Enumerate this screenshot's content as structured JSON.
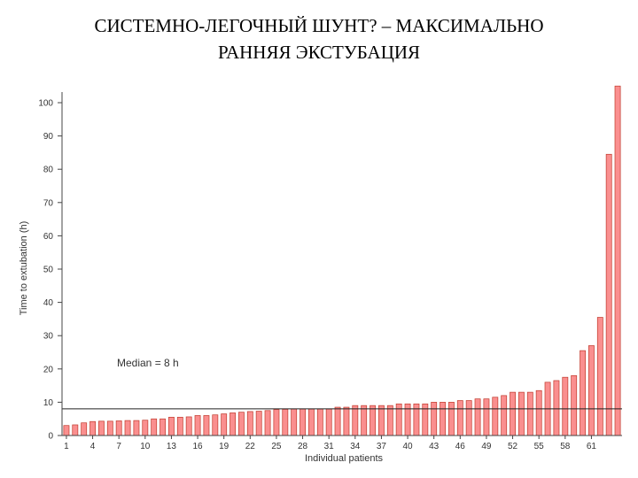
{
  "title": {
    "line1": "СИСТЕМНО-ЛЕГОЧНЫЙ ШУНТ? – МАКСИМАЛЬНО",
    "line2": "РАННЯЯ ЭКСТУБАЦИЯ"
  },
  "colors": {
    "bar_fill": "#fa8f8f",
    "bar_stroke": "#c0392b",
    "axis": "#444444",
    "median_line": "#222222"
  },
  "chart_data": {
    "type": "bar",
    "xlabel": "Individual patients",
    "ylabel": "Time to extubation (h)",
    "ylim": [
      0,
      100
    ],
    "yticks": [
      0,
      10,
      20,
      30,
      40,
      50,
      60,
      70,
      80,
      90,
      100
    ],
    "xtick_patients": [
      1,
      4,
      7,
      10,
      13,
      16,
      19,
      22,
      25,
      28,
      31,
      34,
      37,
      40,
      43,
      46,
      49,
      52,
      55,
      58,
      61
    ],
    "median": {
      "value": 8,
      "label": "Median = 8 h"
    },
    "grid": false,
    "values": [
      3,
      3.2,
      3.8,
      4.2,
      4.3,
      4.3,
      4.4,
      4.5,
      4.5,
      4.6,
      5,
      5,
      5.5,
      5.5,
      5.6,
      6,
      6,
      6.2,
      6.5,
      6.8,
      7,
      7.2,
      7.3,
      7.5,
      7.8,
      7.9,
      8,
      8,
      8,
      8,
      8,
      8.5,
      8.5,
      9,
      9,
      9,
      9,
      9,
      9.5,
      9.5,
      9.5,
      9.5,
      10,
      10,
      10,
      10.5,
      10.5,
      11,
      11,
      11.5,
      12,
      13,
      13,
      13,
      13.5,
      16,
      16.5,
      17.5,
      18,
      25.5,
      27,
      35.5,
      84.5,
      105
    ]
  }
}
